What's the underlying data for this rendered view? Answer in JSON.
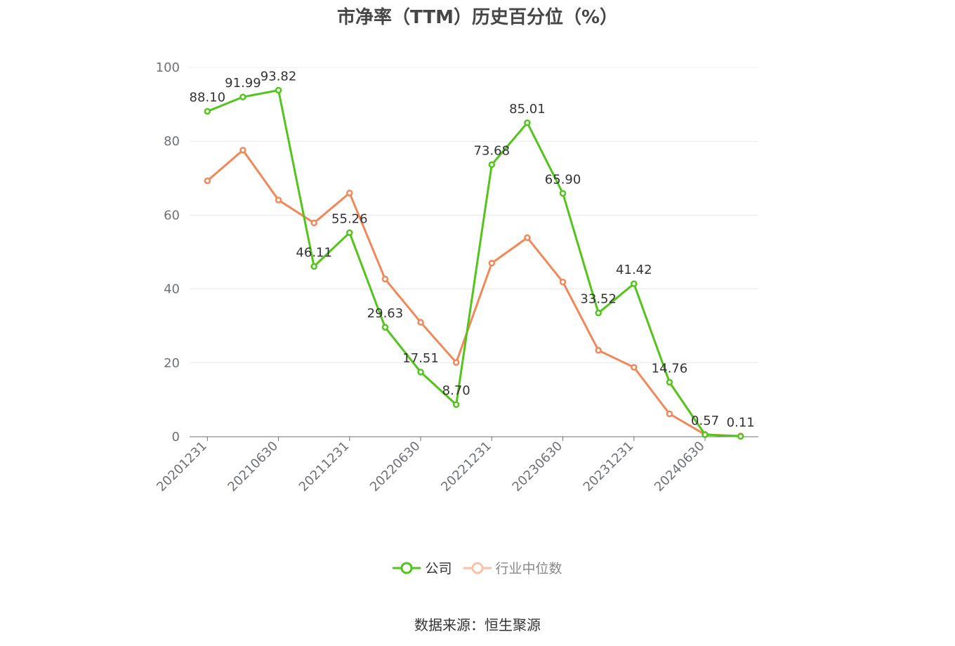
{
  "source": "数据来源：恒生聚源",
  "colors": {
    "company": "#52c41a",
    "industry": "#f2885a",
    "grid": "#e6e9f0",
    "axis": "#6e7079",
    "label": "#333333"
  },
  "chart_data": {
    "type": "line",
    "title": "市净率（TTM）历史百分位（%）",
    "xlabel": "",
    "ylabel": "",
    "ylim": [
      0,
      100
    ],
    "yticks": [
      "0",
      "20",
      "40",
      "60",
      "80",
      "100"
    ],
    "categories": [
      "20201231",
      "20210331",
      "20210630",
      "20210930",
      "20211231",
      "20220331",
      "20220630",
      "20220930",
      "20221231",
      "20230331",
      "20230630",
      "20230930",
      "20231231",
      "20240331",
      "20240630",
      "20240930"
    ],
    "tick_labels": [
      "20201231",
      "20210630",
      "20211231",
      "20220630",
      "20221231",
      "20230630",
      "20231231",
      "20240630"
    ],
    "legend_position": "bottom",
    "grid": true,
    "series": [
      {
        "name": "公司",
        "values": [
          88.1,
          91.99,
          93.82,
          46.11,
          55.26,
          29.63,
          17.51,
          8.7,
          73.68,
          85.01,
          65.9,
          33.52,
          41.42,
          14.76,
          0.57,
          0.11
        ],
        "labels": [
          "88.10",
          "91.99",
          "93.82",
          "46.11",
          "55.26",
          "29.63",
          "17.51",
          "8.70",
          "73.68",
          "85.01",
          "65.90",
          "33.52",
          "41.42",
          "14.76",
          "0.57",
          "0.11"
        ]
      },
      {
        "name": "行业中位数",
        "values": [
          69.3,
          77.6,
          64.1,
          57.9,
          66.0,
          42.7,
          31.0,
          20.1,
          47.0,
          53.9,
          41.9,
          23.4,
          18.8,
          6.2,
          0.6,
          0.2
        ]
      }
    ]
  }
}
